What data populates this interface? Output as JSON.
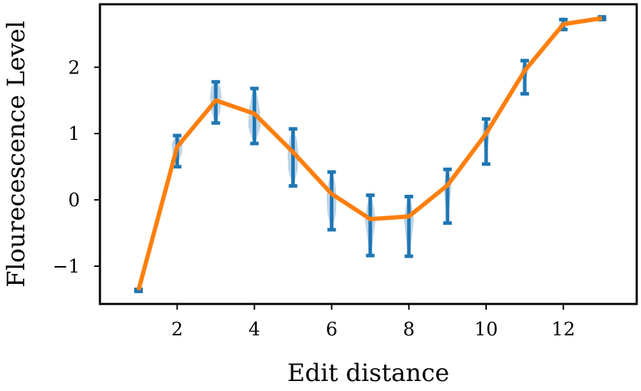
{
  "chart_data": {
    "type": "line",
    "xlabel": "Edit distance",
    "ylabel": "Flourecescence Level",
    "xlim": [
      0.0,
      13.9
    ],
    "ylim": [
      -1.57,
      2.95
    ],
    "xticks": [
      2,
      4,
      6,
      8,
      10,
      12
    ],
    "yticks": [
      -1,
      0,
      1,
      2
    ],
    "ytick_labels": [
      "−1",
      "0",
      "1",
      "2"
    ],
    "grid": false,
    "legend": "none",
    "colors": {
      "line": "#ff7f0e",
      "error_bar": "#1f77b4",
      "violin": "#b3cde3"
    },
    "mean_line": {
      "x": [
        1,
        2,
        3,
        4,
        5,
        6,
        7,
        8,
        9,
        10,
        11,
        12,
        13
      ],
      "y": [
        -1.36,
        0.8,
        1.5,
        1.3,
        0.72,
        0.09,
        -0.29,
        -0.25,
        0.22,
        1.0,
        1.95,
        2.65,
        2.74
      ]
    },
    "error_bars": [
      {
        "x": 1,
        "low": -1.38,
        "high": -1.35
      },
      {
        "x": 2,
        "low": 0.5,
        "high": 0.97
      },
      {
        "x": 3,
        "low": 1.16,
        "high": 1.78
      },
      {
        "x": 4,
        "low": 0.85,
        "high": 1.68
      },
      {
        "x": 5,
        "low": 0.21,
        "high": 1.07
      },
      {
        "x": 6,
        "low": -0.45,
        "high": 0.42
      },
      {
        "x": 7,
        "low": -0.84,
        "high": 0.07
      },
      {
        "x": 8,
        "low": -0.85,
        "high": 0.05
      },
      {
        "x": 9,
        "low": -0.35,
        "high": 0.46
      },
      {
        "x": 10,
        "low": 0.54,
        "high": 1.22
      },
      {
        "x": 11,
        "low": 1.6,
        "high": 2.1
      },
      {
        "x": 12,
        "low": 2.57,
        "high": 2.72
      },
      {
        "x": 13,
        "low": 2.72,
        "high": 2.76
      }
    ],
    "violins": [
      {
        "x": 2,
        "y": [
          0.55,
          0.7,
          0.85,
          0.95
        ],
        "w": [
          0.02,
          0.12,
          0.14,
          0.05
        ]
      },
      {
        "x": 3,
        "y": [
          1.18,
          1.35,
          1.55,
          1.7,
          1.78
        ],
        "w": [
          0.03,
          0.12,
          0.15,
          0.12,
          0.03
        ]
      },
      {
        "x": 4,
        "y": [
          0.87,
          1.1,
          1.35,
          1.55,
          1.67
        ],
        "w": [
          0.03,
          0.16,
          0.14,
          0.08,
          0.03
        ]
      },
      {
        "x": 5,
        "y": [
          0.25,
          0.45,
          0.7,
          0.9,
          1.05
        ],
        "w": [
          0.03,
          0.12,
          0.14,
          0.1,
          0.03
        ]
      },
      {
        "x": 6,
        "y": [
          -0.42,
          -0.2,
          0.05,
          0.25,
          0.4
        ],
        "w": [
          0.03,
          0.11,
          0.13,
          0.09,
          0.03
        ]
      },
      {
        "x": 7,
        "y": [
          -0.8,
          -0.55,
          -0.3,
          -0.1,
          0.05
        ],
        "w": [
          0.03,
          0.08,
          0.14,
          0.09,
          0.03
        ]
      },
      {
        "x": 8,
        "y": [
          -0.8,
          -0.55,
          -0.3,
          -0.1,
          0.03
        ],
        "w": [
          0.03,
          0.08,
          0.13,
          0.08,
          0.03
        ]
      },
      {
        "x": 9,
        "y": [
          -0.3,
          -0.05,
          0.2,
          0.35,
          0.44
        ],
        "w": [
          0.02,
          0.06,
          0.1,
          0.06,
          0.02
        ]
      },
      {
        "x": 10,
        "y": [
          0.6,
          0.85,
          1.05,
          1.15,
          1.2
        ],
        "w": [
          0.02,
          0.06,
          0.1,
          0.08,
          0.02
        ]
      },
      {
        "x": 11,
        "y": [
          1.65,
          1.85,
          1.95,
          2.05,
          2.08
        ],
        "w": [
          0.02,
          0.05,
          0.1,
          0.04,
          0.02
        ]
      },
      {
        "x": 12,
        "y": [
          2.58,
          2.65,
          2.7
        ],
        "w": [
          0.04,
          0.12,
          0.04
        ]
      }
    ]
  }
}
